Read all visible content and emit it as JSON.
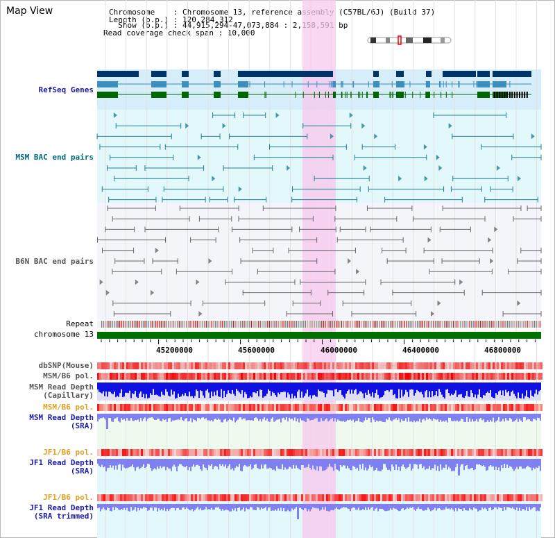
{
  "header": {
    "title": "Map View",
    "lines": [
      "Chromosome    : Chromosome 13, reference assembly (C57BL/6J) (Build 37)",
      "Length (b.p.) : 120,284,312",
      "  Show (b.p.) : 44,915,294-47,073,884 : 2,158,591 bp",
      "Read coverage check span : 10,000"
    ]
  },
  "tracks": {
    "refseq": "RefSeq Genes",
    "msm_bac": "MSM BAC end pairs",
    "b6n_bac": "B6N BAC end pairs",
    "repeat": "Repeat",
    "chromosome": "chromosome 13",
    "dbsnp": "dbSNP(Mouse)",
    "msm_b6_pol_1": "MSM/B6 pol.",
    "msm_depth_cap": "MSM Read Depth\n(Capillary)",
    "msm_b6_pol_2": "MSM/B6 pol.",
    "msm_depth_sra": "MSM Read Depth\n(SRA)",
    "jf1_b6_pol_1": "JF1/B6 pol.",
    "jf1_depth_sra": "JF1 Read Depth\n(SRA)",
    "jf1_b6_pol_2": "JF1/B6 pol.",
    "jf1_depth_trim": "JF1 Read Depth\n(SRA trimmed)"
  },
  "axis": {
    "ticks": [
      "45200000",
      "45600000",
      "46000000",
      "46400000",
      "46800000"
    ]
  },
  "colors": {
    "refseq_dark": "#003366",
    "refseq_mid": "#3a8fbf",
    "refseq_green": "#006600",
    "highlight": "#f7c8ee",
    "chromosome_bar": "#007000",
    "cap_depth": "#1010e0",
    "sra_depth": "#8080f0"
  }
}
